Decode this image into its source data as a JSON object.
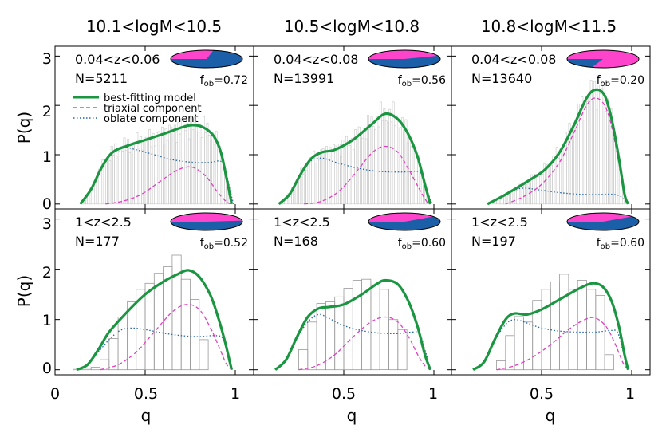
{
  "chart_data": {
    "type": "line",
    "ylabel": "P(q)",
    "xlabel": "q",
    "xlim": [
      0,
      1
    ],
    "ylim": [
      -0.1,
      3.2
    ],
    "x_ticks": [
      "0",
      "0.5",
      "1"
    ],
    "y_ticks": [
      "0",
      "1",
      "2",
      "3"
    ],
    "columns": [
      "10.1<logM<10.5",
      "10.5<logM<10.8",
      "10.8<logM<11.5"
    ],
    "legend": [
      "best-fitting model",
      "triaxial component",
      "oblate component"
    ],
    "colors": {
      "model": "#1a9641",
      "triaxial": "#e040c0",
      "oblate": "#2166ac",
      "pie_magenta": "#ff44cc",
      "pie_blue": "#1a5fa8",
      "hist": "#999999"
    },
    "panels": [
      {
        "z_label": "0.04<z<0.06",
        "n_label": "N=5211",
        "fob_prefix": "f",
        "fob_sub": "ob",
        "fob_value": "=0.72",
        "fob": 0.72,
        "hist_bins": 100,
        "model": [
          [
            0.14,
            0
          ],
          [
            0.2,
            0.3
          ],
          [
            0.26,
            0.75
          ],
          [
            0.32,
            1.05
          ],
          [
            0.4,
            1.18
          ],
          [
            0.5,
            1.3
          ],
          [
            0.6,
            1.42
          ],
          [
            0.7,
            1.55
          ],
          [
            0.76,
            1.6
          ],
          [
            0.82,
            1.56
          ],
          [
            0.88,
            1.38
          ],
          [
            0.92,
            1.05
          ],
          [
            0.95,
            0.55
          ],
          [
            0.98,
            0
          ]
        ],
        "triaxial": [
          [
            0.28,
            0
          ],
          [
            0.38,
            0.06
          ],
          [
            0.48,
            0.2
          ],
          [
            0.58,
            0.45
          ],
          [
            0.66,
            0.65
          ],
          [
            0.73,
            0.75
          ],
          [
            0.78,
            0.72
          ],
          [
            0.84,
            0.55
          ],
          [
            0.9,
            0.25
          ],
          [
            0.95,
            0.05
          ],
          [
            0.98,
            0
          ]
        ],
        "oblate": [
          [
            0.14,
            0
          ],
          [
            0.2,
            0.3
          ],
          [
            0.26,
            0.75
          ],
          [
            0.32,
            1.05
          ],
          [
            0.38,
            1.15
          ],
          [
            0.45,
            1.1
          ],
          [
            0.55,
            1.0
          ],
          [
            0.65,
            0.9
          ],
          [
            0.75,
            0.85
          ],
          [
            0.85,
            0.84
          ],
          [
            0.91,
            0.87
          ],
          [
            0.94,
            0.78
          ],
          [
            0.97,
            0.3
          ],
          [
            0.99,
            0
          ]
        ]
      },
      {
        "z_label": "0.04<z<0.08",
        "n_label": "N=13991",
        "fob_prefix": "f",
        "fob_sub": "ob",
        "fob_value": "=0.56",
        "fob": 0.56,
        "hist_bins": 100,
        "model": [
          [
            0.14,
            0
          ],
          [
            0.2,
            0.2
          ],
          [
            0.26,
            0.6
          ],
          [
            0.32,
            0.92
          ],
          [
            0.38,
            1.05
          ],
          [
            0.45,
            1.1
          ],
          [
            0.55,
            1.3
          ],
          [
            0.65,
            1.6
          ],
          [
            0.73,
            1.83
          ],
          [
            0.8,
            1.72
          ],
          [
            0.86,
            1.4
          ],
          [
            0.91,
            0.95
          ],
          [
            0.95,
            0.4
          ],
          [
            0.98,
            0
          ]
        ],
        "triaxial": [
          [
            0.28,
            0
          ],
          [
            0.38,
            0.06
          ],
          [
            0.48,
            0.28
          ],
          [
            0.58,
            0.7
          ],
          [
            0.66,
            1.05
          ],
          [
            0.73,
            1.17
          ],
          [
            0.8,
            1.05
          ],
          [
            0.86,
            0.7
          ],
          [
            0.92,
            0.3
          ],
          [
            0.96,
            0.05
          ],
          [
            0.98,
            0
          ]
        ],
        "oblate": [
          [
            0.14,
            0
          ],
          [
            0.2,
            0.2
          ],
          [
            0.26,
            0.6
          ],
          [
            0.32,
            0.88
          ],
          [
            0.38,
            0.93
          ],
          [
            0.45,
            0.85
          ],
          [
            0.55,
            0.75
          ],
          [
            0.65,
            0.68
          ],
          [
            0.75,
            0.65
          ],
          [
            0.85,
            0.65
          ],
          [
            0.91,
            0.66
          ],
          [
            0.94,
            0.55
          ],
          [
            0.97,
            0.2
          ],
          [
            0.99,
            0
          ]
        ]
      },
      {
        "z_label": "0.04<z<0.08",
        "n_label": "N=13640",
        "fob_prefix": "f",
        "fob_sub": "ob",
        "fob_value": "=0.20",
        "fob": 0.2,
        "hist_bins": 100,
        "model": [
          [
            0.2,
            0
          ],
          [
            0.28,
            0.15
          ],
          [
            0.36,
            0.32
          ],
          [
            0.44,
            0.5
          ],
          [
            0.52,
            0.7
          ],
          [
            0.6,
            1.05
          ],
          [
            0.68,
            1.6
          ],
          [
            0.75,
            2.15
          ],
          [
            0.8,
            2.32
          ],
          [
            0.85,
            2.2
          ],
          [
            0.89,
            1.7
          ],
          [
            0.93,
            0.9
          ],
          [
            0.96,
            0.2
          ],
          [
            0.98,
            0
          ]
        ],
        "triaxial": [
          [
            0.3,
            0
          ],
          [
            0.4,
            0.15
          ],
          [
            0.5,
            0.4
          ],
          [
            0.6,
            0.85
          ],
          [
            0.68,
            1.45
          ],
          [
            0.75,
            2.0
          ],
          [
            0.8,
            2.15
          ],
          [
            0.85,
            2.0
          ],
          [
            0.89,
            1.55
          ],
          [
            0.93,
            0.8
          ],
          [
            0.96,
            0.2
          ],
          [
            0.98,
            0
          ]
        ],
        "oblate": [
          [
            0.2,
            0
          ],
          [
            0.28,
            0.14
          ],
          [
            0.34,
            0.27
          ],
          [
            0.4,
            0.32
          ],
          [
            0.5,
            0.28
          ],
          [
            0.6,
            0.23
          ],
          [
            0.7,
            0.2
          ],
          [
            0.8,
            0.19
          ],
          [
            0.88,
            0.2
          ],
          [
            0.93,
            0.17
          ],
          [
            0.96,
            0.08
          ],
          [
            0.98,
            0
          ]
        ]
      },
      {
        "z_label": "1<z<2.5",
        "n_label": "N=177",
        "fob_prefix": "f",
        "fob_sub": "ob",
        "fob_value": "=0.52",
        "fob": 0.52,
        "hist_bins": 20,
        "hist": [
          0,
          0,
          0.03,
          0.03,
          0.05,
          0.2,
          0.62,
          1.05,
          1.35,
          1.6,
          1.72,
          1.92,
          2.05,
          2.28,
          1.8,
          1.4,
          0.6,
          0,
          0,
          0
        ],
        "model": [
          [
            0.12,
            0
          ],
          [
            0.18,
            0.1
          ],
          [
            0.24,
            0.4
          ],
          [
            0.3,
            0.75
          ],
          [
            0.4,
            1.15
          ],
          [
            0.5,
            1.5
          ],
          [
            0.6,
            1.75
          ],
          [
            0.68,
            1.9
          ],
          [
            0.74,
            1.98
          ],
          [
            0.8,
            1.85
          ],
          [
            0.86,
            1.5
          ],
          [
            0.9,
            1.1
          ],
          [
            0.94,
            0.6
          ],
          [
            0.97,
            0.15
          ],
          [
            0.98,
            0
          ]
        ],
        "triaxial": [
          [
            0.25,
            0
          ],
          [
            0.35,
            0.1
          ],
          [
            0.45,
            0.35
          ],
          [
            0.55,
            0.75
          ],
          [
            0.65,
            1.15
          ],
          [
            0.73,
            1.3
          ],
          [
            0.8,
            1.2
          ],
          [
            0.86,
            0.85
          ],
          [
            0.91,
            0.45
          ],
          [
            0.95,
            0.12
          ],
          [
            0.98,
            0
          ]
        ],
        "oblate": [
          [
            0.12,
            0
          ],
          [
            0.18,
            0.1
          ],
          [
            0.24,
            0.35
          ],
          [
            0.3,
            0.6
          ],
          [
            0.36,
            0.78
          ],
          [
            0.42,
            0.83
          ],
          [
            0.5,
            0.8
          ],
          [
            0.6,
            0.73
          ],
          [
            0.7,
            0.68
          ],
          [
            0.8,
            0.66
          ],
          [
            0.88,
            0.68
          ],
          [
            0.93,
            0.63
          ],
          [
            0.96,
            0.3
          ],
          [
            0.98,
            0
          ]
        ]
      },
      {
        "z_label": "1<z<2.5",
        "n_label": "N=168",
        "fob_prefix": "f",
        "fob_sub": "ob",
        "fob_value": "=0.60",
        "fob": 0.6,
        "hist_bins": 20,
        "hist": [
          0,
          0,
          0,
          0,
          0,
          0.4,
          0.95,
          1.32,
          1.35,
          1.45,
          1.62,
          1.78,
          1.8,
          1.75,
          1.6,
          1.0,
          0.8,
          0,
          0,
          0
        ],
        "model": [
          [
            0.12,
            0
          ],
          [
            0.18,
            0.2
          ],
          [
            0.24,
            0.65
          ],
          [
            0.3,
            1.05
          ],
          [
            0.36,
            1.22
          ],
          [
            0.42,
            1.25
          ],
          [
            0.5,
            1.3
          ],
          [
            0.6,
            1.5
          ],
          [
            0.68,
            1.7
          ],
          [
            0.73,
            1.78
          ],
          [
            0.8,
            1.7
          ],
          [
            0.86,
            1.35
          ],
          [
            0.91,
            0.85
          ],
          [
            0.95,
            0.3
          ],
          [
            0.98,
            0
          ]
        ],
        "triaxial": [
          [
            0.25,
            0
          ],
          [
            0.35,
            0.08
          ],
          [
            0.45,
            0.3
          ],
          [
            0.55,
            0.65
          ],
          [
            0.65,
            0.95
          ],
          [
            0.73,
            1.05
          ],
          [
            0.8,
            0.95
          ],
          [
            0.86,
            0.65
          ],
          [
            0.91,
            0.3
          ],
          [
            0.95,
            0.08
          ],
          [
            0.98,
            0
          ]
        ],
        "oblate": [
          [
            0.12,
            0
          ],
          [
            0.18,
            0.2
          ],
          [
            0.24,
            0.62
          ],
          [
            0.3,
            0.95
          ],
          [
            0.36,
            1.1
          ],
          [
            0.42,
            1.02
          ],
          [
            0.5,
            0.88
          ],
          [
            0.6,
            0.78
          ],
          [
            0.7,
            0.73
          ],
          [
            0.8,
            0.72
          ],
          [
            0.88,
            0.75
          ],
          [
            0.92,
            0.72
          ],
          [
            0.95,
            0.4
          ],
          [
            0.98,
            0
          ]
        ]
      },
      {
        "z_label": "1<z<2.5",
        "n_label": "N=197",
        "fob_prefix": "f",
        "fob_sub": "ob",
        "fob_value": "=0.60",
        "fob": 0.6,
        "hist_bins": 20,
        "hist": [
          0,
          0,
          0,
          0,
          0,
          0.18,
          0.68,
          1.06,
          0.95,
          1.38,
          1.6,
          1.75,
          1.9,
          1.6,
          1.78,
          1.6,
          1.48,
          0.3,
          0,
          0
        ],
        "model": [
          [
            0.12,
            0
          ],
          [
            0.18,
            0.15
          ],
          [
            0.24,
            0.6
          ],
          [
            0.3,
            1.0
          ],
          [
            0.35,
            1.12
          ],
          [
            0.42,
            1.1
          ],
          [
            0.5,
            1.2
          ],
          [
            0.6,
            1.4
          ],
          [
            0.7,
            1.6
          ],
          [
            0.78,
            1.72
          ],
          [
            0.84,
            1.65
          ],
          [
            0.89,
            1.35
          ],
          [
            0.93,
            0.85
          ],
          [
            0.96,
            0.3
          ],
          [
            0.98,
            0
          ]
        ],
        "triaxial": [
          [
            0.25,
            0
          ],
          [
            0.35,
            0.08
          ],
          [
            0.45,
            0.25
          ],
          [
            0.55,
            0.5
          ],
          [
            0.65,
            0.8
          ],
          [
            0.74,
            1.0
          ],
          [
            0.8,
            1.03
          ],
          [
            0.86,
            0.85
          ],
          [
            0.91,
            0.5
          ],
          [
            0.95,
            0.15
          ],
          [
            0.98,
            0
          ]
        ],
        "oblate": [
          [
            0.12,
            0
          ],
          [
            0.18,
            0.15
          ],
          [
            0.24,
            0.58
          ],
          [
            0.3,
            0.9
          ],
          [
            0.35,
            1.0
          ],
          [
            0.42,
            0.93
          ],
          [
            0.5,
            0.83
          ],
          [
            0.6,
            0.77
          ],
          [
            0.7,
            0.75
          ],
          [
            0.8,
            0.75
          ],
          [
            0.88,
            0.78
          ],
          [
            0.92,
            0.75
          ],
          [
            0.95,
            0.4
          ],
          [
            0.98,
            0
          ]
        ]
      }
    ]
  }
}
